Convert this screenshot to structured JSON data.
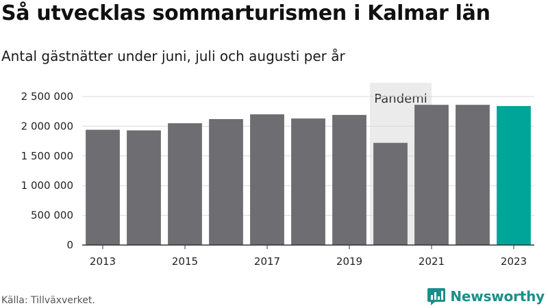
{
  "header": {
    "title": "Så utvecklas sommarturismen i Kalmar län",
    "subtitle": "Antal gästnätter under juni, juli och augusti per år"
  },
  "footer": {
    "source": "Källa: Tillväxverket.",
    "brand": "Newsworthy"
  },
  "colors": {
    "bar": "#6e6d72",
    "highlight": "#00a59a",
    "band": "#ebebeb",
    "grid": "#d9d9d9",
    "axis": "#333333",
    "brand": "#1a8f8a"
  },
  "chart_data": {
    "type": "bar",
    "title": "Så utvecklas sommarturismen i Kalmar län",
    "subtitle": "Antal gästnätter under juni, juli och augusti per år",
    "categories": [
      "2013",
      "2014",
      "2015",
      "2016",
      "2017",
      "2018",
      "2019",
      "2020",
      "2021",
      "2022",
      "2023"
    ],
    "values": [
      1940000,
      1930000,
      2050000,
      2120000,
      2200000,
      2130000,
      2190000,
      1720000,
      2360000,
      2360000,
      2340000
    ],
    "highlight_category": "2023",
    "ylim": [
      0,
      2500000
    ],
    "yticks": [
      0,
      500000,
      1000000,
      1500000,
      2000000,
      2500000
    ],
    "ytick_labels": [
      "0",
      "500 000",
      "1 000 000",
      "1 500 000",
      "2 000 000",
      "2 500 000"
    ],
    "xtick_labels": [
      "2013",
      "2015",
      "2017",
      "2019",
      "2021",
      "2023"
    ],
    "annotation": {
      "label": "Pandemi",
      "from": "2020",
      "to": "2021",
      "y_top": 2730000
    },
    "grid": true,
    "legend": "none"
  }
}
